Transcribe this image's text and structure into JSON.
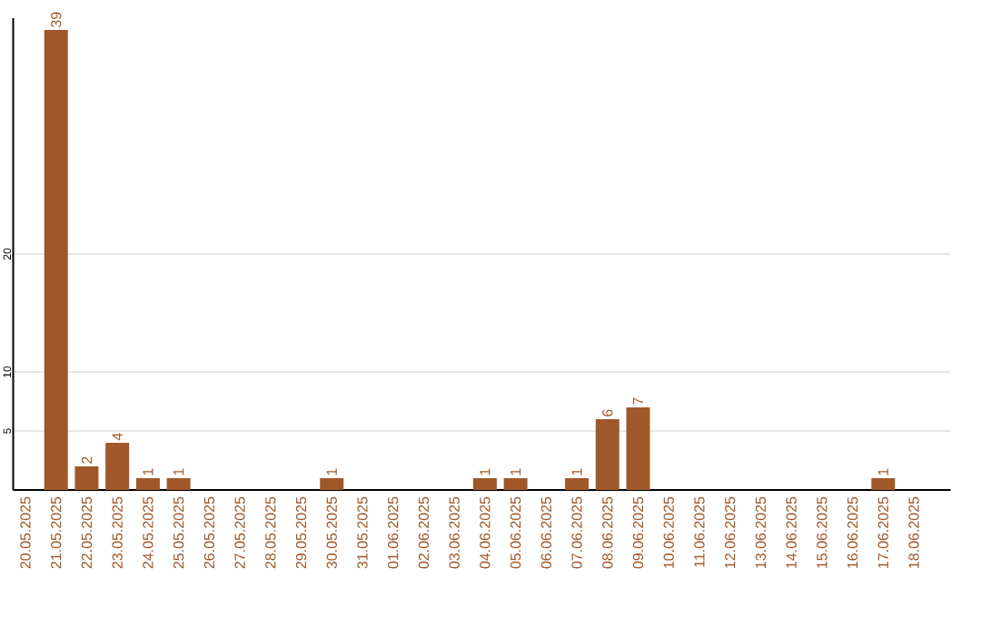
{
  "chart_data": {
    "type": "bar",
    "categories": [
      "20.05.2025",
      "21.05.2025",
      "22.05.2025",
      "23.05.2025",
      "24.05.2025",
      "25.05.2025",
      "26.05.2025",
      "27.05.2025",
      "28.05.2025",
      "29.05.2025",
      "30.05.2025",
      "31.05.2025",
      "01.06.2025",
      "02.06.2025",
      "03.06.2025",
      "04.06.2025",
      "05.06.2025",
      "06.06.2025",
      "07.06.2025",
      "08.06.2025",
      "09.06.2025",
      "10.06.2025",
      "11.06.2025",
      "12.06.2025",
      "13.06.2025",
      "14.06.2025",
      "15.06.2025",
      "16.06.2025",
      "17.06.2025",
      "18.06.2025"
    ],
    "values": [
      0,
      39,
      2,
      4,
      1,
      1,
      0,
      0,
      0,
      0,
      1,
      0,
      0,
      0,
      0,
      1,
      1,
      0,
      1,
      6,
      7,
      0,
      0,
      0,
      0,
      0,
      0,
      0,
      1,
      0
    ],
    "value_labels": [
      null,
      "39",
      "2",
      "4",
      "1",
      "1",
      null,
      null,
      null,
      null,
      "1",
      null,
      null,
      null,
      null,
      "1",
      "1",
      null,
      "1",
      "6",
      "7",
      null,
      null,
      null,
      null,
      null,
      null,
      null,
      "1",
      null
    ],
    "color": "#a0582a",
    "ylim": [
      0,
      40
    ],
    "yticks": [
      5,
      10,
      20
    ],
    "grid": "y"
  }
}
